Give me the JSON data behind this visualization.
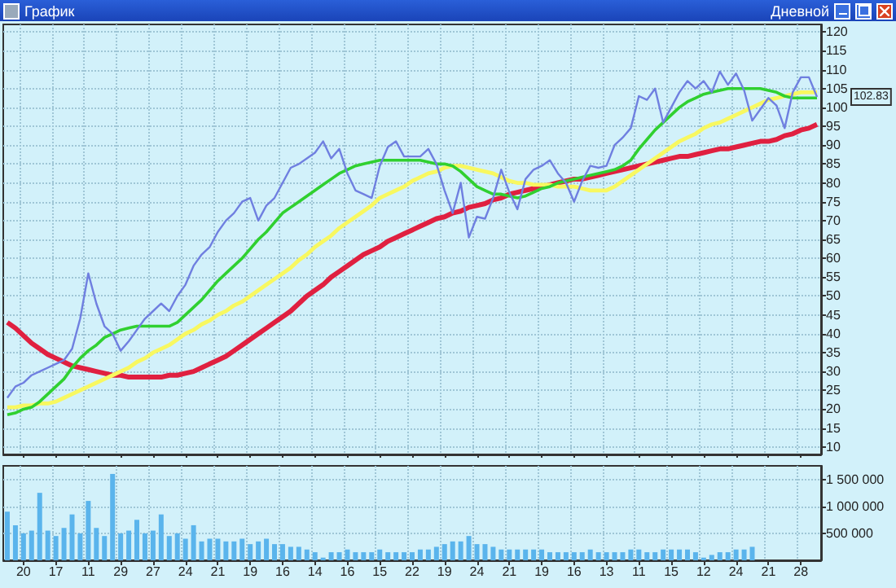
{
  "chart_data": [
    {
      "type": "line",
      "title": "График",
      "subtitle": "Дневной",
      "grid": true,
      "tick_labels": "y",
      "categories": [
        null,
        null,
        "20",
        null,
        null,
        null,
        "17",
        null,
        null,
        null,
        "11",
        null,
        null,
        null,
        "29",
        null,
        null,
        null,
        "27",
        null,
        null,
        null,
        "24",
        null,
        null,
        null,
        "21",
        null,
        null,
        null,
        "19",
        null,
        null,
        null,
        "16",
        null,
        null,
        null,
        "14",
        null,
        null,
        null,
        "16",
        null,
        null,
        null,
        "15",
        null,
        null,
        null,
        "22",
        null,
        null,
        null,
        "19",
        null,
        null,
        null,
        "24",
        null,
        null,
        null,
        "21",
        null,
        null,
        null,
        "19",
        null,
        null,
        null,
        "16",
        null,
        null,
        null,
        "13",
        null,
        null,
        null,
        "11",
        null,
        null,
        null,
        "15",
        null,
        null,
        null,
        "12",
        null,
        null,
        null,
        "24",
        null,
        null,
        null,
        "21",
        null,
        null,
        null,
        "28",
        null,
        null
      ],
      "ylim": [
        8,
        122
      ],
      "yticks": [
        10,
        15,
        20,
        25,
        30,
        35,
        40,
        45,
        50,
        55,
        60,
        65,
        70,
        75,
        80,
        85,
        90,
        95,
        100,
        105,
        110,
        115,
        120
      ],
      "annotations": [
        "102.83"
      ],
      "series": [
        {
          "color": "#e02040",
          "values": [
            43,
            41.5,
            39.5,
            37.5,
            36,
            34.5,
            33.5,
            32.5,
            31.5,
            31,
            30.5,
            30,
            29.5,
            29,
            29,
            28.5,
            28.5,
            28.5,
            28.5,
            28.5,
            29,
            29,
            29.5,
            30,
            31,
            32,
            33,
            34,
            35.5,
            37,
            38.5,
            40,
            41.5,
            43,
            44.5,
            46,
            48,
            50,
            51.5,
            53,
            55,
            56.5,
            58,
            59.5,
            61,
            62,
            63,
            64.5,
            65.5,
            66.5,
            67.5,
            68.5,
            69.5,
            70.5,
            71,
            72,
            72.5,
            73.5,
            74,
            74.5,
            75.5,
            76,
            77,
            77.5,
            78,
            78.5,
            79,
            79.5,
            80,
            80.5,
            81,
            81,
            81.5,
            82,
            82.5,
            83,
            83.5,
            84,
            84.5,
            85,
            85.5,
            86,
            86.5,
            87,
            87,
            87.5,
            88,
            88.5,
            89,
            89,
            89.5,
            90,
            90.5,
            91,
            91,
            91.5,
            92.5,
            93,
            94,
            94.5,
            95.5
          ]
        },
        {
          "color": "#f8f860",
          "values": [
            20.5,
            20.5,
            21,
            21,
            21.5,
            21.5,
            22,
            23,
            24,
            25,
            26,
            27,
            28,
            29,
            30,
            31,
            32.5,
            33.5,
            35,
            36,
            37,
            38.5,
            40,
            41,
            42.5,
            43.5,
            45,
            46,
            47.5,
            48.5,
            50,
            51.5,
            53,
            54.5,
            56,
            57.5,
            59.5,
            61,
            63,
            64.5,
            66,
            68,
            69.5,
            71,
            72.5,
            74,
            76,
            77,
            78,
            79,
            80.5,
            81.5,
            82.5,
            83,
            84,
            84.5,
            84.5,
            84,
            83.5,
            83,
            82.5,
            81.5,
            80.5,
            80,
            80,
            79.5,
            79.5,
            79.5,
            79,
            79,
            79,
            78.5,
            78,
            78,
            78,
            79,
            80.5,
            82,
            83.5,
            85,
            86.5,
            88,
            89.5,
            91,
            92,
            93,
            94.5,
            95.5,
            96,
            97,
            98,
            99,
            100,
            101,
            102,
            102.5,
            103,
            103.5,
            104,
            104,
            104
          ]
        },
        {
          "color": "#30d030",
          "values": [
            18.5,
            19,
            20,
            20.5,
            22,
            24,
            26,
            28,
            31,
            33.5,
            35.5,
            37,
            39,
            40,
            41,
            41.5,
            42,
            42,
            42,
            42,
            42,
            43,
            45,
            47,
            49,
            51.5,
            54,
            56,
            58,
            60,
            62.5,
            65,
            67,
            69.5,
            72,
            73.5,
            75,
            76.5,
            78,
            79.5,
            81,
            82.5,
            83.5,
            84.5,
            85,
            85.5,
            86,
            86,
            86,
            86,
            86,
            86,
            85.5,
            85,
            85,
            84.5,
            83,
            81,
            79,
            78,
            77,
            77,
            76.5,
            76,
            76.5,
            77.5,
            78.5,
            79,
            80,
            80.5,
            81,
            81.5,
            82,
            82.5,
            83,
            83.5,
            84.5,
            86,
            89,
            91.5,
            94,
            96,
            98,
            100,
            101.5,
            102.5,
            103.5,
            104,
            104.5,
            105,
            105,
            105,
            105,
            105,
            104.5,
            104,
            103,
            102.5,
            102.5,
            102.5,
            102.5
          ]
        },
        {
          "color": "#6f7fe0",
          "values": [
            23,
            26,
            27,
            29,
            30,
            31,
            32,
            33,
            36,
            44,
            56,
            48,
            42,
            40,
            35.5,
            38,
            41,
            44,
            46,
            48,
            46,
            50,
            53,
            58,
            61,
            63,
            67,
            70,
            72,
            75,
            76,
            70,
            74,
            76,
            80,
            84,
            85,
            86.5,
            88,
            91,
            86.5,
            89,
            82.5,
            78,
            77,
            76,
            84.5,
            89.5,
            91,
            87,
            87,
            87,
            89,
            85,
            78,
            72,
            80,
            65.5,
            71,
            70.5,
            76,
            83.5,
            77.5,
            73,
            81,
            83.5,
            84.5,
            86,
            82.5,
            80,
            75,
            80.5,
            84.5,
            84,
            84.5,
            90,
            92,
            94.5,
            103,
            102,
            105,
            96,
            100,
            104,
            107,
            105,
            107,
            104,
            109.5,
            106,
            109,
            104.5,
            96.5,
            99.5,
            102.5,
            100.5,
            94.5,
            104,
            108,
            108,
            102.8
          ]
        }
      ]
    },
    {
      "type": "bar",
      "grid": true,
      "color": "#5ab4ec",
      "categories": [
        null,
        null,
        "20",
        null,
        null,
        null,
        "17",
        null,
        null,
        null,
        "11",
        null,
        null,
        null,
        "29",
        null,
        null,
        null,
        "27",
        null,
        null,
        null,
        "24",
        null,
        null,
        null,
        "21",
        null,
        null,
        null,
        "19",
        null,
        null,
        null,
        "16",
        null,
        null,
        null,
        "14",
        null,
        null,
        null,
        "16",
        null,
        null,
        null,
        "15",
        null,
        null,
        null,
        "22",
        null,
        null,
        null,
        "19",
        null,
        null,
        null,
        "24",
        null,
        null,
        null,
        "21",
        null,
        null,
        null,
        "19",
        null,
        null,
        null,
        "16",
        null,
        null,
        null,
        "13",
        null,
        null,
        null,
        "11",
        null,
        null,
        null,
        "15",
        null,
        null,
        null,
        "12",
        null,
        null,
        null,
        "24",
        null,
        null,
        null,
        "21",
        null,
        null,
        null,
        "28",
        null,
        null
      ],
      "ylim": [
        0,
        1750000
      ],
      "yticks": [
        {
          "value": 500000,
          "label": "500 000"
        },
        {
          "value": 1000000,
          "label": "1 000 000"
        },
        {
          "value": 1500000,
          "label": "1 500 000"
        }
      ],
      "values": [
        900000,
        650000,
        500000,
        550000,
        1250000,
        550000,
        450000,
        600000,
        850000,
        500000,
        1100000,
        600000,
        450000,
        1600000,
        500000,
        550000,
        750000,
        500000,
        550000,
        850000,
        450000,
        500000,
        400000,
        650000,
        350000,
        400000,
        400000,
        350000,
        350000,
        400000,
        300000,
        350000,
        400000,
        300000,
        300000,
        250000,
        250000,
        200000,
        150000,
        50000,
        150000,
        150000,
        200000,
        150000,
        150000,
        150000,
        200000,
        150000,
        150000,
        150000,
        150000,
        200000,
        200000,
        250000,
        300000,
        350000,
        350000,
        450000,
        300000,
        300000,
        250000,
        200000,
        200000,
        200000,
        200000,
        200000,
        200000,
        150000,
        150000,
        150000,
        150000,
        150000,
        200000,
        150000,
        150000,
        150000,
        150000,
        200000,
        200000,
        150000,
        150000,
        200000,
        200000,
        200000,
        200000,
        150000,
        50000,
        100000,
        150000,
        150000,
        200000,
        200000,
        250000,
        null,
        null,
        null,
        null,
        null,
        null,
        null,
        null
      ]
    }
  ]
}
